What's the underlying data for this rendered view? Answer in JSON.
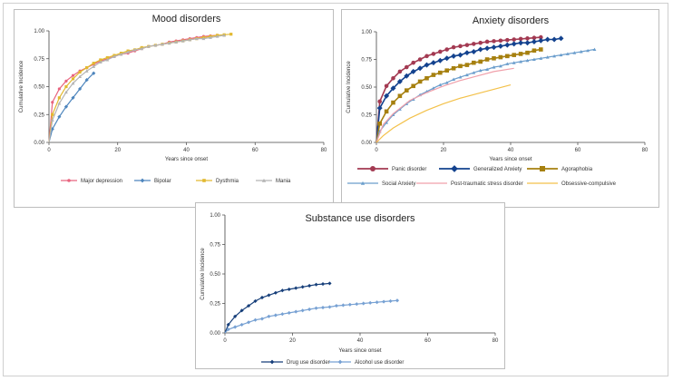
{
  "chart_data": [
    {
      "id": "mood",
      "type": "line",
      "title": "Mood disorders",
      "xlabel": "Years since onset",
      "ylabel": "Cumulative Incidence",
      "xlim": [
        0,
        80
      ],
      "ylim": [
        0,
        1
      ],
      "xticks": [
        "0",
        "20",
        "40",
        "60",
        "80"
      ],
      "yticks": [
        "0.00",
        "0.25",
        "0.50",
        "0.75",
        "1.00"
      ],
      "legend_position": "bottom",
      "series": [
        {
          "name": "Major depression",
          "color": "#e8657f",
          "marker": "circle",
          "marker_size": "small",
          "x": [
            0,
            1,
            3,
            5,
            7,
            9,
            11,
            13,
            15,
            17,
            19,
            21,
            23,
            25,
            27,
            29,
            31,
            33,
            35,
            37,
            39,
            41,
            43,
            45,
            47,
            49
          ],
          "y": [
            0,
            0.36,
            0.48,
            0.55,
            0.6,
            0.64,
            0.67,
            0.7,
            0.73,
            0.75,
            0.77,
            0.79,
            0.8,
            0.82,
            0.84,
            0.86,
            0.87,
            0.88,
            0.9,
            0.91,
            0.92,
            0.93,
            0.94,
            0.95,
            0.955,
            0.96
          ]
        },
        {
          "name": "Bipolar",
          "color": "#4d85bd",
          "marker": "diamond",
          "marker_size": "small",
          "x": [
            0,
            1,
            3,
            5,
            7,
            9,
            11,
            13
          ],
          "y": [
            0,
            0.12,
            0.23,
            0.32,
            0.4,
            0.48,
            0.56,
            0.62
          ]
        },
        {
          "name": "Dysthmia",
          "color": "#e2b930",
          "marker": "square",
          "marker_size": "small",
          "x": [
            0,
            1,
            3,
            5,
            7,
            9,
            11,
            13,
            15,
            17,
            19,
            21,
            23,
            25,
            27,
            29,
            31,
            33,
            35,
            37,
            39,
            41,
            43,
            45,
            47,
            49,
            51,
            53
          ],
          "y": [
            0,
            0.25,
            0.4,
            0.5,
            0.57,
            0.63,
            0.67,
            0.71,
            0.74,
            0.76,
            0.78,
            0.8,
            0.82,
            0.83,
            0.85,
            0.86,
            0.87,
            0.88,
            0.89,
            0.9,
            0.91,
            0.92,
            0.93,
            0.94,
            0.95,
            0.96,
            0.965,
            0.97
          ]
        },
        {
          "name": "Mania",
          "color": "#b3b3b3",
          "marker": "triangle",
          "marker_size": "small",
          "x": [
            0,
            1,
            3,
            5,
            7,
            9,
            11,
            13,
            15,
            17,
            19,
            21,
            23,
            25,
            27,
            29,
            31,
            33,
            35,
            37,
            39,
            41,
            43,
            45,
            47,
            49,
            51
          ],
          "y": [
            0,
            0.2,
            0.35,
            0.45,
            0.53,
            0.59,
            0.64,
            0.68,
            0.72,
            0.74,
            0.77,
            0.79,
            0.81,
            0.83,
            0.84,
            0.86,
            0.87,
            0.88,
            0.89,
            0.9,
            0.91,
            0.92,
            0.93,
            0.93,
            0.94,
            0.95,
            0.96
          ]
        }
      ]
    },
    {
      "id": "anxiety",
      "type": "line",
      "title": "Anxiety disorders",
      "xlabel": "Years since onset",
      "ylabel": "Cumulative Incidence",
      "xlim": [
        0,
        80
      ],
      "ylim": [
        0,
        1
      ],
      "xticks": [
        "0",
        "20",
        "40",
        "60",
        "80"
      ],
      "yticks": [
        "0.00",
        "0.25",
        "0.50",
        "0.75",
        "1.00"
      ],
      "legend_position": "bottom",
      "series": [
        {
          "name": "Panic disorder",
          "color": "#a33a52",
          "marker": "circle",
          "marker_size": "large",
          "x": [
            0,
            1,
            3,
            5,
            7,
            9,
            11,
            13,
            15,
            17,
            19,
            21,
            23,
            25,
            27,
            29,
            31,
            33,
            35,
            37,
            39,
            41,
            43,
            45,
            47,
            49
          ],
          "y": [
            0,
            0.37,
            0.51,
            0.58,
            0.64,
            0.68,
            0.72,
            0.75,
            0.78,
            0.8,
            0.82,
            0.84,
            0.86,
            0.87,
            0.88,
            0.89,
            0.9,
            0.91,
            0.915,
            0.92,
            0.925,
            0.93,
            0.935,
            0.94,
            0.945,
            0.95
          ]
        },
        {
          "name": "Generalized Anxiety",
          "color": "#13428e",
          "marker": "diamond",
          "marker_size": "large",
          "x": [
            0,
            1,
            3,
            5,
            7,
            9,
            11,
            13,
            15,
            17,
            19,
            21,
            23,
            25,
            27,
            29,
            31,
            33,
            35,
            37,
            39,
            41,
            43,
            45,
            47,
            49,
            51,
            53,
            55
          ],
          "y": [
            0,
            0.31,
            0.42,
            0.49,
            0.55,
            0.6,
            0.64,
            0.67,
            0.7,
            0.72,
            0.74,
            0.76,
            0.78,
            0.79,
            0.81,
            0.82,
            0.84,
            0.85,
            0.86,
            0.87,
            0.88,
            0.89,
            0.9,
            0.9,
            0.91,
            0.92,
            0.93,
            0.93,
            0.94
          ]
        },
        {
          "name": "Agoraphobia",
          "color": "#a6800f",
          "marker": "square",
          "marker_size": "large",
          "x": [
            0,
            1,
            3,
            5,
            7,
            9,
            11,
            13,
            15,
            17,
            19,
            21,
            23,
            25,
            27,
            29,
            31,
            33,
            35,
            37,
            39,
            41,
            43,
            45,
            47,
            49
          ],
          "y": [
            0,
            0.17,
            0.28,
            0.36,
            0.42,
            0.47,
            0.51,
            0.55,
            0.58,
            0.61,
            0.63,
            0.65,
            0.67,
            0.69,
            0.7,
            0.72,
            0.73,
            0.75,
            0.76,
            0.77,
            0.78,
            0.79,
            0.8,
            0.81,
            0.83,
            0.84
          ]
        },
        {
          "name": "Social Anxiety",
          "color": "#6a9dcc",
          "marker": "triangle",
          "marker_size": "small",
          "x": [
            0,
            1,
            3,
            5,
            7,
            9,
            11,
            13,
            15,
            17,
            19,
            21,
            23,
            25,
            27,
            29,
            31,
            33,
            35,
            37,
            39,
            41,
            43,
            45,
            47,
            49,
            51,
            53,
            55,
            57,
            59,
            61,
            63,
            65
          ],
          "y": [
            0,
            0.1,
            0.18,
            0.25,
            0.3,
            0.35,
            0.39,
            0.43,
            0.46,
            0.49,
            0.52,
            0.54,
            0.57,
            0.59,
            0.61,
            0.63,
            0.65,
            0.66,
            0.68,
            0.69,
            0.71,
            0.72,
            0.73,
            0.74,
            0.75,
            0.76,
            0.77,
            0.78,
            0.79,
            0.8,
            0.81,
            0.82,
            0.83,
            0.84
          ]
        },
        {
          "name": "Post-traumatic stress disorder",
          "color": "#f0a0aa",
          "marker": "none",
          "x": [
            0,
            2,
            5,
            10,
            15,
            20,
            25,
            30,
            35,
            41
          ],
          "y": [
            0,
            0.16,
            0.26,
            0.38,
            0.45,
            0.51,
            0.56,
            0.6,
            0.64,
            0.67
          ]
        },
        {
          "name": "Obsessive-compulsive",
          "color": "#f3c14a",
          "marker": "none",
          "x": [
            0,
            2,
            5,
            10,
            15,
            20,
            25,
            30,
            35,
            40
          ],
          "y": [
            0,
            0.06,
            0.13,
            0.22,
            0.29,
            0.35,
            0.4,
            0.44,
            0.48,
            0.52
          ]
        }
      ]
    },
    {
      "id": "substance",
      "type": "line",
      "title": "Substance use disorders",
      "xlabel": "Years since onset",
      "ylabel": "Cumulative Incidence",
      "xlim": [
        0,
        80
      ],
      "ylim": [
        0,
        1
      ],
      "xticks": [
        "0",
        "20",
        "40",
        "60",
        "80"
      ],
      "yticks": [
        "0.00",
        "0.25",
        "0.50",
        "0.75",
        "1.00"
      ],
      "legend_position": "bottom",
      "series": [
        {
          "name": "Drug use disorder",
          "color": "#173f7a",
          "marker": "diamond",
          "marker_size": "small",
          "x": [
            0,
            1,
            3,
            5,
            7,
            9,
            11,
            13,
            15,
            17,
            19,
            21,
            23,
            25,
            27,
            29,
            31
          ],
          "y": [
            0,
            0.07,
            0.14,
            0.19,
            0.23,
            0.27,
            0.3,
            0.32,
            0.34,
            0.36,
            0.37,
            0.38,
            0.39,
            0.4,
            0.41,
            0.415,
            0.42
          ]
        },
        {
          "name": "Alcohol use disorder",
          "color": "#77a1d3",
          "marker": "diamond",
          "marker_size": "small",
          "x": [
            0,
            1,
            3,
            5,
            7,
            9,
            11,
            13,
            15,
            17,
            19,
            21,
            23,
            25,
            27,
            29,
            31,
            33,
            35,
            37,
            39,
            41,
            43,
            45,
            47,
            49,
            51
          ],
          "y": [
            0,
            0.03,
            0.05,
            0.07,
            0.09,
            0.11,
            0.12,
            0.14,
            0.15,
            0.16,
            0.17,
            0.18,
            0.19,
            0.2,
            0.21,
            0.215,
            0.22,
            0.23,
            0.235,
            0.24,
            0.245,
            0.25,
            0.255,
            0.26,
            0.265,
            0.27,
            0.275
          ]
        }
      ]
    }
  ]
}
